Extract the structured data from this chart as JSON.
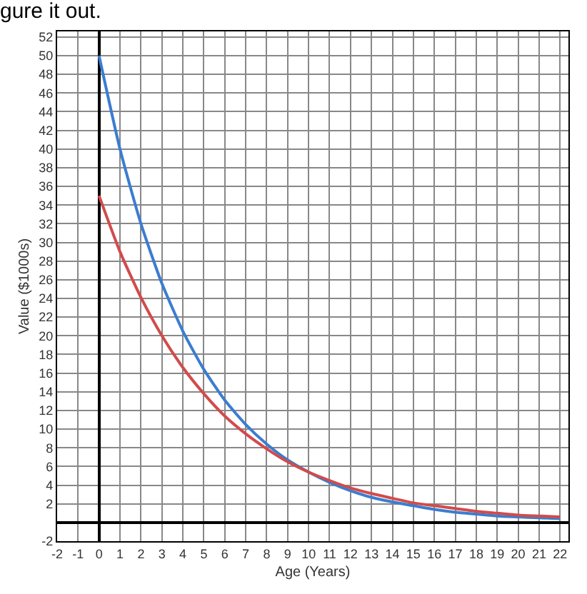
{
  "chart_data": {
    "type": "line",
    "title": "gure it out.",
    "xlabel": "Age (Years)",
    "ylabel": "Value ($1000s)",
    "x": [
      0,
      1,
      2,
      3,
      4,
      5,
      6,
      7,
      8,
      9,
      10,
      11,
      12,
      13,
      14,
      15,
      16,
      17,
      18,
      19,
      20,
      21,
      22
    ],
    "series": [
      {
        "color": "#3b7dd0",
        "values": [
          50,
          40,
          32,
          25.6,
          20.5,
          16.4,
          13.1,
          10.5,
          8.4,
          6.7,
          5.4,
          4.3,
          3.4,
          2.7,
          2.2,
          1.8,
          1.4,
          1.1,
          0.9,
          0.7,
          0.6,
          0.5,
          0.4
        ]
      },
      {
        "color": "#d24b4b",
        "values": [
          35,
          29,
          24.1,
          20,
          16.6,
          13.8,
          11.4,
          9.5,
          7.9,
          6.5,
          5.4,
          4.5,
          3.7,
          3.1,
          2.6,
          2.1,
          1.8,
          1.5,
          1.2,
          1,
          0.8,
          0.7,
          0.6
        ]
      }
    ],
    "xlim": [
      -2,
      22.4
    ],
    "ylim": [
      -2,
      52.6
    ],
    "xticks": [
      -2,
      -1,
      0,
      1,
      2,
      3,
      4,
      5,
      6,
      7,
      8,
      9,
      10,
      11,
      12,
      13,
      14,
      15,
      16,
      17,
      18,
      19,
      20,
      21,
      22
    ],
    "yticks": [
      -2,
      2,
      4,
      6,
      8,
      10,
      12,
      14,
      16,
      18,
      20,
      22,
      24,
      26,
      28,
      30,
      32,
      34,
      36,
      38,
      40,
      42,
      44,
      46,
      48,
      50,
      52
    ],
    "grid": true,
    "marker": "none",
    "line_style": "solid"
  }
}
